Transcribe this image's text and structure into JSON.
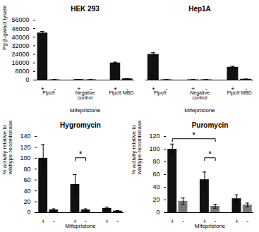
{
  "chart_data": [
    {
      "type": "bar",
      "title": "HEK 293",
      "categories": [
        "Flpo9",
        "Negative\ncontrol",
        "Flpo9 MBD"
      ],
      "series": [
        {
          "name": "+",
          "color": "#111111",
          "values": [
            44000,
            500,
            16000
          ],
          "errors": [
            1500,
            100,
            700
          ]
        },
        {
          "name": "-",
          "color": "#111111",
          "values": [
            300,
            300,
            1200
          ],
          "errors": [
            100,
            100,
            200
          ]
        }
      ],
      "xlabel": "Mifepristone",
      "ylabel": "Pg β-galact lysate",
      "ylim": [
        0,
        56000
      ],
      "yticks": [
        0,
        8000,
        16000,
        24000,
        32000,
        40000,
        48000,
        56000
      ]
    },
    {
      "type": "bar",
      "title": "Hep1A",
      "categories": [
        "Flpo9",
        "Negative\ncontrol",
        "Flpo9 MBD"
      ],
      "series": [
        {
          "name": "+",
          "color": "#111111",
          "values": [
            24000,
            300,
            12000
          ],
          "errors": [
            1500,
            100,
            800
          ]
        },
        {
          "name": "-",
          "color": "#111111",
          "values": [
            300,
            300,
            800
          ],
          "errors": [
            100,
            100,
            200
          ]
        }
      ],
      "xlabel": "Mifepristone",
      "ylim": [
        0,
        56000
      ],
      "tick_labels": "x"
    },
    {
      "type": "bar",
      "title": "Hygromycin",
      "categories": [
        null,
        null,
        null
      ],
      "series": [
        {
          "name": "+",
          "color": "#111111",
          "values": [
            100,
            52,
            8
          ],
          "errors": [
            25,
            18,
            2
          ]
        },
        {
          "name": "-",
          "color": "#111111",
          "values": [
            5,
            5,
            3
          ],
          "errors": [
            2,
            2,
            1
          ]
        }
      ],
      "xlabel": "Mifepristone",
      "ylabel": "% activity relative to\nwildtype recombinase",
      "ylim": [
        0,
        140
      ],
      "yticks": [
        0,
        20,
        40,
        60,
        80,
        100,
        120,
        140
      ],
      "annotations": [
        {
          "text": "*",
          "from": [
            1,
            0
          ],
          "to": [
            1,
            1
          ]
        }
      ]
    },
    {
      "type": "bar",
      "title": "Puromycin",
      "categories": [
        null,
        null,
        null
      ],
      "series": [
        {
          "name": "+",
          "color": "#111111",
          "values": [
            100,
            52,
            22
          ],
          "errors": [
            8,
            12,
            6
          ]
        },
        {
          "name": "-",
          "color": "#777777",
          "values": [
            18,
            10,
            12
          ],
          "errors": [
            5,
            3,
            3
          ]
        }
      ],
      "xlabel": "Mifepristone",
      "ylabel": "% activity relative to\nwildtype recombinase",
      "ylim": [
        0,
        120
      ],
      "yticks": [
        0,
        20,
        40,
        60,
        80,
        100,
        120
      ],
      "annotations": [
        {
          "text": "*",
          "from": [
            1,
            0
          ],
          "to": [
            1,
            1
          ]
        },
        {
          "text": "*",
          "from": [
            0,
            0
          ],
          "to": [
            1,
            1
          ]
        }
      ]
    }
  ]
}
